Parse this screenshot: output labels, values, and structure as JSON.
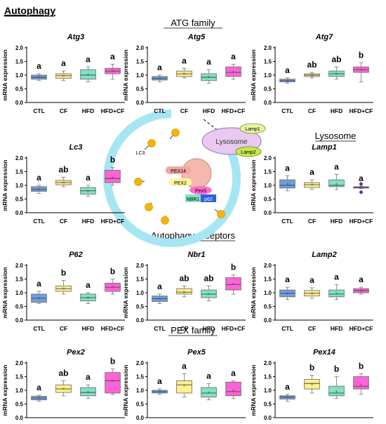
{
  "page_title": "Autophagy",
  "section_labels": {
    "atg": "ATG family",
    "lysosome": "Lysosome",
    "receptors": "Autophagy receptors",
    "pex": "PEX family"
  },
  "diagram": {
    "lc3": "LC3",
    "lysosome": "Lysosome",
    "lamp1": "Lamp1",
    "lamp2": "Lamp2",
    "pex14": "PEX14",
    "pex2": "PEX2",
    "pex5": "Pex5",
    "nbr1": "NBR1",
    "p62": "p62"
  },
  "colors": {
    "CTL": "#6f9fe0",
    "CF": "#fff08a",
    "HFD": "#7fe3c6",
    "HFD+CF": "#ff63d6"
  },
  "chart_data": [
    {
      "type": "box",
      "title": "Atg3",
      "ylabel": "mRNA expression",
      "ylim": [
        0,
        2
      ],
      "yticks": [
        "0.0",
        "0.5",
        "1.0",
        "1.5",
        "2.0"
      ],
      "categories": [
        "CTL",
        "CF",
        "HFD",
        "HFD+CF"
      ],
      "letters": [
        "a",
        "a",
        "a",
        "a"
      ],
      "boxes": [
        {
          "min": 0.8,
          "q1": 0.85,
          "median": 0.92,
          "q3": 1.0,
          "max": 1.05,
          "mean": 0.93
        },
        {
          "min": 0.8,
          "q1": 0.88,
          "median": 0.98,
          "q3": 1.05,
          "max": 1.15,
          "mean": 0.98
        },
        {
          "min": 0.75,
          "q1": 0.85,
          "median": 1.0,
          "q3": 1.2,
          "max": 1.3,
          "mean": 1.02
        },
        {
          "min": 0.85,
          "q1": 1.05,
          "median": 1.15,
          "q3": 1.25,
          "max": 1.4,
          "mean": 1.15
        }
      ]
    },
    {
      "type": "box",
      "title": "Atg5",
      "ylabel": "mRNA expression",
      "ylim": [
        0,
        2
      ],
      "yticks": [
        "0.0",
        "0.5",
        "1.0",
        "1.5",
        "2.0"
      ],
      "categories": [
        "CTL",
        "CF",
        "HFD",
        "HFD+CF"
      ],
      "letters": [
        "a",
        "a",
        "a",
        "a"
      ],
      "boxes": [
        {
          "min": 0.75,
          "q1": 0.82,
          "median": 0.88,
          "q3": 0.95,
          "max": 1.0,
          "mean": 0.88
        },
        {
          "min": 0.9,
          "q1": 0.95,
          "median": 1.05,
          "q3": 1.15,
          "max": 1.25,
          "mean": 1.05
        },
        {
          "min": 0.7,
          "q1": 0.8,
          "median": 0.92,
          "q3": 1.05,
          "max": 1.2,
          "mean": 0.93
        },
        {
          "min": 0.85,
          "q1": 0.95,
          "median": 1.1,
          "q3": 1.3,
          "max": 1.4,
          "mean": 1.12
        }
      ]
    },
    {
      "type": "box",
      "title": "Atg7",
      "ylabel": "mRNA expression",
      "ylim": [
        0,
        2
      ],
      "yticks": [
        "0.0",
        "0.5",
        "1.0",
        "1.5",
        "2.0"
      ],
      "categories": [
        "CTL",
        "CF",
        "HFD",
        "HFD+CF"
      ],
      "letters": [
        "a",
        "ab",
        "ab",
        "b"
      ],
      "boxes": [
        {
          "min": 0.7,
          "q1": 0.75,
          "median": 0.8,
          "q3": 0.85,
          "max": 0.9,
          "mean": 0.8
        },
        {
          "min": 0.9,
          "q1": 0.95,
          "median": 1.0,
          "q3": 1.05,
          "max": 1.1,
          "mean": 1.0
        },
        {
          "min": 0.85,
          "q1": 0.95,
          "median": 1.05,
          "q3": 1.15,
          "max": 1.3,
          "mean": 1.05
        },
        {
          "min": 0.75,
          "q1": 1.1,
          "median": 1.2,
          "q3": 1.3,
          "max": 1.45,
          "mean": 1.2
        }
      ]
    },
    {
      "type": "box",
      "title": "Lc3",
      "ylabel": "mRNA expression",
      "ylim": [
        0,
        2
      ],
      "yticks": [
        "0.0",
        "0.5",
        "1.0",
        "1.5",
        "2.0"
      ],
      "categories": [
        "CTL",
        "CF",
        "HFD",
        "HFD+CF"
      ],
      "letters": [
        "a",
        "ab",
        "a",
        "b"
      ],
      "boxes": [
        {
          "min": 0.7,
          "q1": 0.78,
          "median": 0.85,
          "q3": 0.95,
          "max": 1.0,
          "mean": 0.86
        },
        {
          "min": 0.95,
          "q1": 1.02,
          "median": 1.1,
          "q3": 1.18,
          "max": 1.3,
          "mean": 1.1
        },
        {
          "min": 0.6,
          "q1": 0.68,
          "median": 0.8,
          "q3": 0.92,
          "max": 1.0,
          "mean": 0.8
        },
        {
          "min": 1.0,
          "q1": 1.1,
          "median": 1.25,
          "q3": 1.55,
          "max": 1.65,
          "mean": 1.28
        }
      ]
    },
    {
      "type": "box",
      "title": "Lamp1",
      "ylabel": "mRNA expression",
      "ylim": [
        0,
        2
      ],
      "yticks": [
        "0.0",
        "0.5",
        "1.0",
        "1.5",
        "2.0"
      ],
      "categories": [
        "CTL",
        "CF",
        "HFD",
        "HFD+CF"
      ],
      "letters": [
        "a",
        "a",
        "a",
        "a"
      ],
      "boxes": [
        {
          "min": 0.8,
          "q1": 0.9,
          "median": 1.0,
          "q3": 1.2,
          "max": 1.35,
          "mean": 1.05
        },
        {
          "min": 0.85,
          "q1": 0.92,
          "median": 1.02,
          "q3": 1.1,
          "max": 1.2,
          "mean": 1.02
        },
        {
          "min": 0.85,
          "q1": 0.95,
          "median": 1.0,
          "q3": 1.2,
          "max": 1.4,
          "mean": 1.05
        },
        {
          "min": 0.88,
          "q1": 0.9,
          "median": 0.92,
          "q3": 0.95,
          "max": 0.97,
          "mean": 0.92
        }
      ],
      "outliers": [
        [],
        [],
        [],
        [
          0.75,
          1.05
        ]
      ]
    },
    {
      "type": "box",
      "title": "P62",
      "ylabel": "mRNA expression",
      "ylim": [
        0,
        2
      ],
      "yticks": [
        "0.0",
        "0.5",
        "1.0",
        "1.5",
        "2.0"
      ],
      "categories": [
        "CTL",
        "CF",
        "HFD",
        "HFD+CF"
      ],
      "letters": [
        "a",
        "b",
        "a",
        "b"
      ],
      "boxes": [
        {
          "min": 0.6,
          "q1": 0.65,
          "median": 0.8,
          "q3": 0.95,
          "max": 1.05,
          "mean": 0.8
        },
        {
          "min": 0.95,
          "q1": 1.05,
          "median": 1.15,
          "q3": 1.25,
          "max": 1.45,
          "mean": 1.15
        },
        {
          "min": 0.6,
          "q1": 0.7,
          "median": 0.82,
          "q3": 0.95,
          "max": 1.0,
          "mean": 0.82
        },
        {
          "min": 0.95,
          "q1": 1.05,
          "median": 1.2,
          "q3": 1.35,
          "max": 1.5,
          "mean": 1.22
        }
      ]
    },
    {
      "type": "box",
      "title": "Nbr1",
      "ylabel": "mRNA expression",
      "ylim": [
        0,
        2
      ],
      "yticks": [
        "0.0",
        "0.5",
        "1.0",
        "1.5",
        "2.0"
      ],
      "categories": [
        "CTL",
        "CF",
        "HFD",
        "HFD+CF"
      ],
      "letters": [
        "a",
        "ab",
        "ab",
        "b"
      ],
      "boxes": [
        {
          "min": 0.6,
          "q1": 0.68,
          "median": 0.78,
          "q3": 0.88,
          "max": 0.95,
          "mean": 0.78
        },
        {
          "min": 0.85,
          "q1": 0.95,
          "median": 1.02,
          "q3": 1.15,
          "max": 1.25,
          "mean": 1.03
        },
        {
          "min": 0.7,
          "q1": 0.82,
          "median": 0.95,
          "q3": 1.1,
          "max": 1.25,
          "mean": 0.96
        },
        {
          "min": 0.95,
          "q1": 1.1,
          "median": 1.3,
          "q3": 1.55,
          "max": 1.65,
          "mean": 1.32
        }
      ]
    },
    {
      "type": "box",
      "title": "Lamp2",
      "ylabel": "mRNA expression",
      "ylim": [
        0,
        2
      ],
      "yticks": [
        "0.0",
        "0.5",
        "1.0",
        "1.5",
        "2.0"
      ],
      "categories": [
        "CTL",
        "CF",
        "HFD",
        "HFD+CF"
      ],
      "letters": [
        "a",
        "a",
        "a",
        "a"
      ],
      "boxes": [
        {
          "min": 0.75,
          "q1": 0.85,
          "median": 0.98,
          "q3": 1.1,
          "max": 1.2,
          "mean": 0.98
        },
        {
          "min": 0.8,
          "q1": 0.88,
          "median": 0.98,
          "q3": 1.08,
          "max": 1.18,
          "mean": 0.98
        },
        {
          "min": 0.75,
          "q1": 0.85,
          "median": 0.95,
          "q3": 1.1,
          "max": 1.3,
          "mean": 0.97
        },
        {
          "min": 0.95,
          "q1": 1.0,
          "median": 1.08,
          "q3": 1.15,
          "max": 1.2,
          "mean": 1.08
        }
      ]
    },
    {
      "type": "box",
      "title": "Pex2",
      "ylabel": "mRNA expression",
      "ylim": [
        0,
        2
      ],
      "yticks": [
        "0.0",
        "0.5",
        "1.0",
        "1.5",
        "2.0"
      ],
      "categories": [
        "CTL",
        "CF",
        "HFD",
        "HFD+CF"
      ],
      "letters": [
        "a",
        "ab",
        "a",
        "b"
      ],
      "boxes": [
        {
          "min": 0.6,
          "q1": 0.65,
          "median": 0.72,
          "q3": 0.78,
          "max": 0.82,
          "mean": 0.72
        },
        {
          "min": 0.8,
          "q1": 0.92,
          "median": 1.05,
          "q3": 1.2,
          "max": 1.35,
          "mean": 1.06
        },
        {
          "min": 0.7,
          "q1": 0.8,
          "median": 0.92,
          "q3": 1.1,
          "max": 1.2,
          "mean": 0.93
        },
        {
          "min": 0.85,
          "q1": 0.9,
          "median": 1.35,
          "q3": 1.65,
          "max": 1.78,
          "mean": 1.35
        }
      ]
    },
    {
      "type": "box",
      "title": "Pex5",
      "ylabel": "mRNA expression",
      "ylim": [
        0,
        2
      ],
      "yticks": [
        "0.0",
        "0.5",
        "1.0",
        "1.5",
        "2.0"
      ],
      "categories": [
        "CTL",
        "CF",
        "HFD",
        "HFD+CF"
      ],
      "letters": [
        "a",
        "a",
        "a",
        "a"
      ],
      "boxes": [
        {
          "min": 0.85,
          "q1": 0.9,
          "median": 0.95,
          "q3": 1.0,
          "max": 1.05,
          "mean": 0.95
        },
        {
          "min": 0.75,
          "q1": 0.9,
          "median": 1.2,
          "q3": 1.35,
          "max": 1.6,
          "mean": 1.18
        },
        {
          "min": 0.65,
          "q1": 0.75,
          "median": 0.9,
          "q3": 1.1,
          "max": 1.25,
          "mean": 0.92
        },
        {
          "min": 0.7,
          "q1": 0.8,
          "median": 0.95,
          "q3": 1.3,
          "max": 1.35,
          "mean": 1.0
        }
      ]
    },
    {
      "type": "box",
      "title": "Pex14",
      "ylabel": "mRNA expression",
      "ylim": [
        0,
        2
      ],
      "yticks": [
        "0.0",
        "0.5",
        "1.0",
        "1.5",
        "2.0"
      ],
      "categories": [
        "CTL",
        "CF",
        "HFD",
        "HFD+CF"
      ],
      "letters": [
        "a",
        "b",
        "b",
        "b"
      ],
      "boxes": [
        {
          "min": 0.6,
          "q1": 0.68,
          "median": 0.75,
          "q3": 0.8,
          "max": 0.85,
          "mean": 0.74
        },
        {
          "min": 0.9,
          "q1": 1.05,
          "median": 1.25,
          "q3": 1.4,
          "max": 1.55,
          "mean": 1.22
        },
        {
          "min": 0.7,
          "q1": 0.8,
          "median": 0.9,
          "q3": 1.15,
          "max": 1.5,
          "mean": 0.95
        },
        {
          "min": 0.85,
          "q1": 1.05,
          "median": 1.15,
          "q3": 1.5,
          "max": 1.6,
          "mean": 1.2
        }
      ]
    }
  ]
}
